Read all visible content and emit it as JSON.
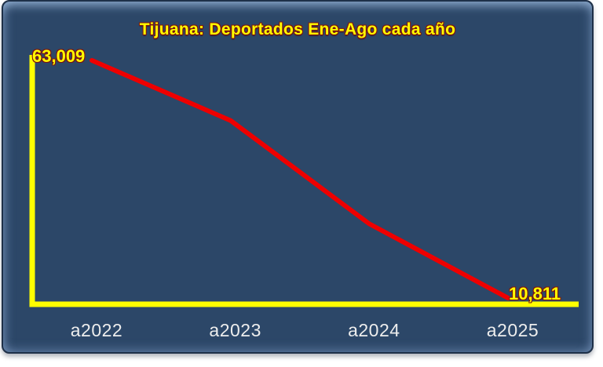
{
  "page": {
    "background_color": "#FFFFFF"
  },
  "chart_frame": {
    "background_color": "#2C4768",
    "border_color": "#1E3048",
    "bevel_highlight_color": "#7FA3CC"
  },
  "chart_data": {
    "type": "line",
    "title": "Tijuana: Deportados Ene-Ago cada año",
    "title_color": "#FFFF00",
    "title_outline_color": "#7E1410",
    "categories": [
      "a2022",
      "a2023",
      "a2024",
      "a2025"
    ],
    "series": [
      {
        "name": "Deportados Ene-Ago",
        "color": "#EE0000",
        "values": [
          63009,
          49800,
          27100,
          10811
        ]
      }
    ],
    "point_labels": [
      "63,009",
      "",
      "",
      "10,811"
    ],
    "value_label_color": "#FFFF00",
    "axis_color": "#FFFF00",
    "tick_label_color": "#EDEDED",
    "xlabel": "",
    "ylabel": "",
    "ylim": [
      9400,
      64200
    ],
    "grid": false,
    "legend": "none"
  }
}
